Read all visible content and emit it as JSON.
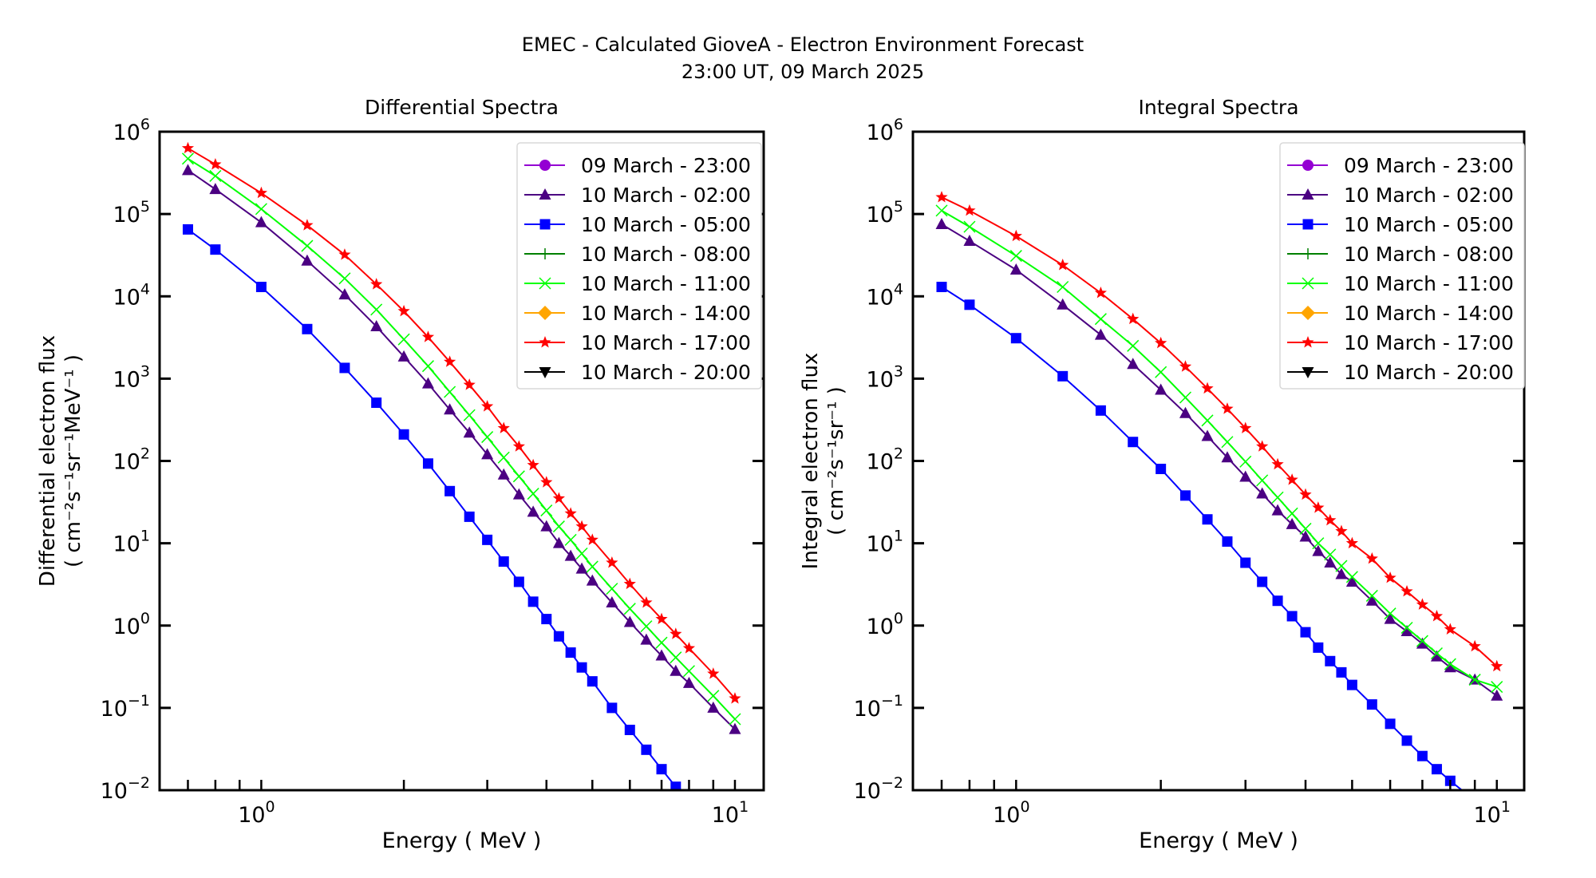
{
  "figure": {
    "title_line1": "EMEC - Calculated GioveA - Electron Environment Forecast",
    "title_line2": "23:00 UT, 09 March 2025"
  },
  "legend": [
    {
      "label": "09 March - 23:00",
      "color": "#9400d3",
      "marker": "circle"
    },
    {
      "label": "10 March - 02:00",
      "color": "#4b0082",
      "marker": "triangle-up"
    },
    {
      "label": "10 March - 05:00",
      "color": "#0000ff",
      "marker": "square"
    },
    {
      "label": "10 March - 08:00",
      "color": "#008000",
      "marker": "plus"
    },
    {
      "label": "10 March - 11:00",
      "color": "#00ff00",
      "marker": "x"
    },
    {
      "label": "10 March - 14:00",
      "color": "#ffa500",
      "marker": "diamond"
    },
    {
      "label": "10 March - 17:00",
      "color": "#ff0000",
      "marker": "star"
    },
    {
      "label": "10 March - 20:00",
      "color": "#000000",
      "marker": "triangle-down"
    }
  ],
  "chart_data": [
    {
      "type": "line",
      "title": "Differential Spectra",
      "xlabel": "Energy ( MeV )",
      "ylabel_line1": "Differential electron flux",
      "ylabel_line2": "( cm⁻²s⁻¹sr⁻¹MeV⁻¹ )",
      "xscale": "log",
      "yscale": "log",
      "xlim": [
        0.61,
        11.5
      ],
      "ylim": [
        0.01,
        1000000
      ],
      "xticks": [
        {
          "value": 1,
          "label": "10",
          "exp": "0"
        },
        {
          "value": 10,
          "label": "10",
          "exp": "1"
        }
      ],
      "yticks": [
        {
          "value": 1000000,
          "label": "10",
          "exp": "6"
        },
        {
          "value": 100000,
          "label": "10",
          "exp": "5"
        },
        {
          "value": 10000,
          "label": "10",
          "exp": "4"
        },
        {
          "value": 1000,
          "label": "10",
          "exp": "3"
        },
        {
          "value": 100,
          "label": "10",
          "exp": "2"
        },
        {
          "value": 10,
          "label": "10",
          "exp": "1"
        },
        {
          "value": 1,
          "label": "10",
          "exp": "0"
        },
        {
          "value": 0.1,
          "label": "10",
          "exp": "−1"
        },
        {
          "value": 0.01,
          "label": "10",
          "exp": "−2"
        }
      ],
      "legend_position": "top-right",
      "x": [
        0.7,
        0.8,
        1.0,
        1.25,
        1.5,
        1.75,
        2.0,
        2.25,
        2.5,
        2.75,
        3.0,
        3.25,
        3.5,
        3.75,
        4.0,
        4.25,
        4.5,
        4.75,
        5.0,
        5.5,
        6.0,
        6.5,
        7.0,
        7.5,
        8.0,
        9.0,
        10.0
      ],
      "series": [
        {
          "name": "10 March - 02:00",
          "color": "#4b0082",
          "marker": "triangle-up",
          "values": [
            340000,
            200000,
            79000,
            27000,
            10500,
            4300,
            1850,
            870,
            420,
            220,
            120,
            68,
            39,
            24,
            16,
            10,
            7.0,
            4.9,
            3.5,
            1.9,
            1.1,
            0.67,
            0.43,
            0.28,
            0.2,
            0.1,
            0.055
          ]
        },
        {
          "name": "10 March - 05:00",
          "color": "#0000ff",
          "marker": "square",
          "values": [
            65000,
            37000,
            13000,
            4000,
            1350,
            510,
            210,
            93,
            43,
            21,
            11,
            6.0,
            3.4,
            1.95,
            1.2,
            0.74,
            0.47,
            0.31,
            0.21,
            0.1,
            0.054,
            0.031,
            0.018,
            0.011,
            0.0072,
            null,
            null
          ]
        },
        {
          "name": "10 March - 11:00",
          "color": "#00ff00",
          "marker": "x",
          "values": [
            470000,
            290000,
            115000,
            41000,
            16500,
            6900,
            3000,
            1420,
            690,
            360,
            195,
            110,
            65,
            40,
            25,
            16,
            11,
            7.5,
            5.2,
            2.8,
            1.6,
            0.98,
            0.62,
            0.41,
            0.28,
            0.14,
            0.073
          ]
        },
        {
          "name": "10 March - 17:00",
          "color": "#ff0000",
          "marker": "star",
          "values": [
            630000,
            400000,
            180000,
            73000,
            32000,
            14000,
            6600,
            3200,
            1600,
            840,
            460,
            250,
            150,
            89,
            55,
            35,
            23,
            16,
            11,
            5.8,
            3.2,
            1.9,
            1.2,
            0.79,
            0.53,
            0.26,
            0.13
          ]
        }
      ]
    },
    {
      "type": "line",
      "title": "Integral Spectra",
      "xlabel": "Energy ( MeV )",
      "ylabel_line1": "Integral electron flux",
      "ylabel_line2": "( cm⁻²s⁻¹sr⁻¹ )",
      "xscale": "log",
      "yscale": "log",
      "xlim": [
        0.61,
        11.4
      ],
      "ylim": [
        0.01,
        1000000
      ],
      "xticks": [
        {
          "value": 1,
          "label": "10",
          "exp": "0"
        },
        {
          "value": 10,
          "label": "10",
          "exp": "1"
        }
      ],
      "yticks": [
        {
          "value": 1000000,
          "label": "10",
          "exp": "6"
        },
        {
          "value": 100000,
          "label": "10",
          "exp": "5"
        },
        {
          "value": 10000,
          "label": "10",
          "exp": "4"
        },
        {
          "value": 1000,
          "label": "10",
          "exp": "3"
        },
        {
          "value": 100,
          "label": "10",
          "exp": "2"
        },
        {
          "value": 10,
          "label": "10",
          "exp": "1"
        },
        {
          "value": 1,
          "label": "10",
          "exp": "0"
        },
        {
          "value": 0.1,
          "label": "10",
          "exp": "−1"
        },
        {
          "value": 0.01,
          "label": "10",
          "exp": "−2"
        }
      ],
      "legend_position": "top-right",
      "x": [
        0.7,
        0.8,
        1.0,
        1.25,
        1.5,
        1.75,
        2.0,
        2.25,
        2.5,
        2.75,
        3.0,
        3.25,
        3.5,
        3.75,
        4.0,
        4.25,
        4.5,
        4.75,
        5.0,
        5.5,
        6.0,
        6.5,
        7.0,
        7.5,
        8.0,
        9.0,
        10.0
      ],
      "series": [
        {
          "name": "10 March - 02:00",
          "color": "#4b0082",
          "marker": "triangle-up",
          "values": [
            75000,
            47000,
            21000,
            7900,
            3400,
            1500,
            730,
            380,
            200,
            110,
            64,
            40,
            25,
            17,
            12,
            8.0,
            5.8,
            4.2,
            3.4,
            2.0,
            1.2,
            0.85,
            0.6,
            0.42,
            0.31,
            0.22,
            0.14
          ]
        },
        {
          "name": "10 March - 05:00",
          "color": "#0000ff",
          "marker": "square",
          "values": [
            13000,
            7900,
            3100,
            1070,
            410,
            170,
            80,
            38,
            19.5,
            10.5,
            5.8,
            3.4,
            2.0,
            1.3,
            0.83,
            0.54,
            0.37,
            0.27,
            0.19,
            0.11,
            0.064,
            0.04,
            0.026,
            0.018,
            0.013,
            0.0075,
            null
          ]
        },
        {
          "name": "10 March - 11:00",
          "color": "#00ff00",
          "marker": "x",
          "values": [
            110000,
            70000,
            31000,
            13000,
            5300,
            2500,
            1200,
            590,
            310,
            170,
            98,
            58,
            36,
            23,
            15,
            10,
            7.3,
            5.3,
            3.9,
            2.3,
            1.4,
            0.94,
            0.65,
            0.46,
            0.34,
            0.22,
            0.18
          ]
        },
        {
          "name": "10 March - 17:00",
          "color": "#ff0000",
          "marker": "star",
          "values": [
            160000,
            110000,
            54000,
            24000,
            11000,
            5300,
            2700,
            1400,
            760,
            430,
            250,
            150,
            91,
            59,
            39,
            27,
            19,
            14,
            10,
            6.5,
            3.8,
            2.6,
            1.8,
            1.3,
            0.9,
            0.56,
            0.32
          ]
        }
      ]
    }
  ]
}
